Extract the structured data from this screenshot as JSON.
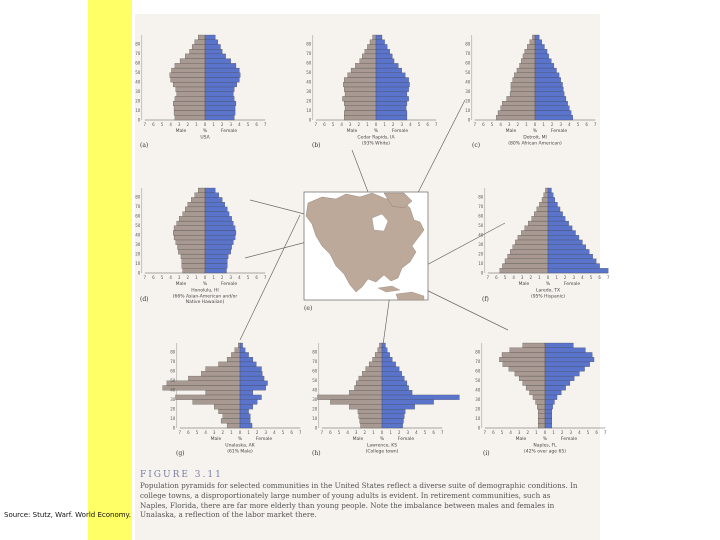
{
  "source_text": "Source: Stutz, Warf. World Economy.",
  "figure": {
    "title": "FIGURE 3.11",
    "caption": "Population pyramids for selected communities in the United States reflect a diverse suite of demographic conditions. In college towns, a disproportionately large number of young adults is evident. In retirement communities, such as Naples, Florida, there are far more elderly than young people. Note the imbalance between males and females in Unalaska, a reflection of the labor market there."
  },
  "colors": {
    "male": "#a89a92",
    "female": "#5a74cc",
    "stripe": "#ffff66",
    "map_land": "#bca99a",
    "map_water": "#ffffff"
  },
  "chart_data": [
    {
      "type": "bar",
      "panel": "a",
      "axis_labels": [
        "Male",
        "%",
        "Female"
      ],
      "caption": [
        "USA"
      ],
      "age_ticks": [
        "0",
        "10",
        "20",
        "30",
        "40",
        "50",
        "60",
        "70",
        "80"
      ],
      "x_ticks": [
        "7",
        "6",
        "5",
        "4",
        "3",
        "2",
        "1",
        "0",
        "1",
        "2",
        "3",
        "4",
        "5",
        "6",
        "7"
      ],
      "series": [
        {
          "name": "Male",
          "values": [
            3.5,
            3.6,
            3.6,
            3.7,
            3.5,
            3.3,
            3.4,
            3.7,
            4.0,
            4.1,
            3.9,
            3.5,
            2.9,
            2.3,
            1.8,
            1.5,
            1.2,
            0.8
          ]
        },
        {
          "name": "Female",
          "values": [
            3.4,
            3.5,
            3.5,
            3.6,
            3.4,
            3.3,
            3.4,
            3.7,
            4.0,
            4.1,
            4.0,
            3.6,
            3.0,
            2.4,
            2.0,
            1.8,
            1.5,
            1.2
          ]
        }
      ]
    },
    {
      "type": "bar",
      "panel": "b",
      "axis_labels": [
        "Male",
        "%",
        "Female"
      ],
      "caption": [
        "Cedar Rapids, IA",
        "(93% White)"
      ],
      "age_ticks": [
        "0",
        "10",
        "20",
        "30",
        "40",
        "50",
        "60",
        "70",
        "80"
      ],
      "x_ticks": [
        "7",
        "6",
        "5",
        "4",
        "3",
        "2",
        "1",
        "0",
        "1",
        "2",
        "3",
        "4",
        "5",
        "6",
        "7"
      ],
      "series": [
        {
          "name": "Male",
          "values": [
            3.7,
            3.7,
            3.6,
            3.7,
            3.9,
            3.6,
            3.7,
            3.8,
            3.7,
            3.3,
            2.9,
            2.4,
            1.9,
            1.6,
            1.3,
            1.0,
            0.7,
            0.4
          ]
        },
        {
          "name": "Female",
          "values": [
            3.6,
            3.6,
            3.5,
            3.6,
            3.8,
            3.6,
            3.8,
            3.9,
            3.8,
            3.4,
            3.0,
            2.6,
            2.1,
            1.9,
            1.6,
            1.3,
            1.0,
            0.7
          ]
        }
      ]
    },
    {
      "type": "bar",
      "panel": "c",
      "axis_labels": [
        "Male",
        "%",
        "Female"
      ],
      "caption": [
        "Detroit, MI",
        "(80% African American)"
      ],
      "age_ticks": [
        "0",
        "10",
        "20",
        "30",
        "40",
        "50",
        "60",
        "70",
        "80"
      ],
      "x_ticks": [
        "7",
        "6",
        "5",
        "4",
        "3",
        "2",
        "1",
        "0",
        "1",
        "2",
        "3",
        "4",
        "5",
        "6",
        "7"
      ],
      "series": [
        {
          "name": "Male",
          "values": [
            4.5,
            4.3,
            4.0,
            3.8,
            3.3,
            2.9,
            2.8,
            2.8,
            2.6,
            2.4,
            2.1,
            1.8,
            1.6,
            1.4,
            1.2,
            0.9,
            0.6,
            0.3
          ]
        },
        {
          "name": "Female",
          "values": [
            4.4,
            4.2,
            4.0,
            3.8,
            3.6,
            3.4,
            3.3,
            3.2,
            3.0,
            2.8,
            2.5,
            2.2,
            1.9,
            1.6,
            1.4,
            1.1,
            0.8,
            0.5
          ]
        }
      ]
    },
    {
      "type": "bar",
      "panel": "d",
      "axis_labels": [
        "Male",
        "%",
        "Female"
      ],
      "caption": [
        "Honolulu, HI",
        "(66% Asian-American and/or",
        "Native Hawaiian)"
      ],
      "age_ticks": [
        "0",
        "10",
        "20",
        "30",
        "40",
        "50",
        "60",
        "70",
        "80"
      ],
      "x_ticks": [
        "7",
        "6",
        "5",
        "4",
        "3",
        "2",
        "1",
        "0",
        "1",
        "2",
        "3",
        "4",
        "5",
        "6",
        "7"
      ],
      "series": [
        {
          "name": "Male",
          "values": [
            2.6,
            2.7,
            2.7,
            2.8,
            3.1,
            3.2,
            3.4,
            3.6,
            3.7,
            3.6,
            3.3,
            3.0,
            2.6,
            2.3,
            2.0,
            1.6,
            1.2,
            0.8
          ]
        },
        {
          "name": "Female",
          "values": [
            2.5,
            2.6,
            2.6,
            2.7,
            3.0,
            3.1,
            3.3,
            3.5,
            3.6,
            3.5,
            3.3,
            3.1,
            2.8,
            2.6,
            2.3,
            2.0,
            1.6,
            1.2
          ]
        }
      ]
    },
    {
      "type": "bar",
      "panel": "f",
      "axis_labels": [
        "Male",
        "%",
        "Female"
      ],
      "caption": [
        "Laredo, TX",
        "(95% Hispanic)"
      ],
      "age_ticks": [
        "0",
        "10",
        "20",
        "30",
        "40",
        "50",
        "60",
        "70",
        "80"
      ],
      "x_ticks": [
        "7",
        "6",
        "5",
        "4",
        "3",
        "2",
        "1",
        "0",
        "1",
        "2",
        "3",
        "4",
        "5",
        "6",
        "7"
      ],
      "series": [
        {
          "name": "Male",
          "values": [
            5.6,
            5.3,
            5.0,
            4.7,
            4.4,
            4.1,
            3.8,
            3.5,
            3.1,
            2.7,
            2.3,
            1.9,
            1.6,
            1.3,
            1.0,
            0.7,
            0.5,
            0.3
          ]
        },
        {
          "name": "Female",
          "values": [
            7.0,
            6.0,
            5.6,
            5.2,
            4.8,
            4.4,
            4.0,
            3.6,
            3.2,
            2.8,
            2.4,
            2.0,
            1.7,
            1.4,
            1.1,
            0.8,
            0.6,
            0.4
          ]
        }
      ]
    },
    {
      "type": "bar",
      "panel": "g",
      "axis_labels": [
        "Male",
        "%",
        "Female"
      ],
      "caption": [
        "Unalaska, AK",
        "(61% Male)"
      ],
      "age_ticks": [
        "0",
        "10",
        "20",
        "30",
        "40",
        "50",
        "60",
        "70",
        "80"
      ],
      "x_ticks": [
        "7",
        "6",
        "5",
        "4",
        "3",
        "2",
        "1",
        "0",
        "1",
        "2",
        "3",
        "4",
        "5",
        "6",
        "7"
      ],
      "series": [
        {
          "name": "Male",
          "values": [
            1.5,
            2.2,
            2.0,
            2.5,
            3.0,
            5.5,
            7.5,
            4.0,
            9.0,
            8.5,
            6.0,
            4.5,
            4.0,
            2.5,
            1.5,
            1.0,
            0.6,
            0.2
          ]
        },
        {
          "name": "Female",
          "values": [
            1.4,
            1.2,
            1.2,
            1.0,
            1.5,
            2.0,
            2.5,
            1.5,
            3.0,
            3.2,
            2.8,
            2.6,
            2.5,
            1.9,
            1.5,
            1.0,
            0.6,
            0.3
          ]
        }
      ]
    },
    {
      "type": "bar",
      "panel": "h",
      "axis_labels": [
        "Male",
        "%",
        "Female"
      ],
      "caption": [
        "Lawrence, KS",
        "(College town)"
      ],
      "age_ticks": [
        "0",
        "10",
        "20",
        "30",
        "40",
        "50",
        "60",
        "70",
        "80"
      ],
      "x_ticks": [
        "7",
        "6",
        "5",
        "4",
        "3",
        "2",
        "1",
        "0",
        "1",
        "2",
        "3",
        "4",
        "5",
        "6",
        "7"
      ],
      "series": [
        {
          "name": "Male",
          "values": [
            2.5,
            2.6,
            2.7,
            2.8,
            3.8,
            6.0,
            7.5,
            3.8,
            3.2,
            3.0,
            2.7,
            2.3,
            1.9,
            1.5,
            1.1,
            0.8,
            0.5,
            0.3
          ]
        },
        {
          "name": "Female",
          "values": [
            2.4,
            2.5,
            2.6,
            2.7,
            3.8,
            6.0,
            9.0,
            3.5,
            3.1,
            2.9,
            2.6,
            2.3,
            2.0,
            1.6,
            1.2,
            0.9,
            0.6,
            0.4
          ]
        }
      ]
    },
    {
      "type": "bar",
      "panel": "i",
      "axis_labels": [
        "Male",
        "%",
        "Female"
      ],
      "caption": [
        "Naples, FL",
        "(42% over age 65)"
      ],
      "age_ticks": [
        "0",
        "10",
        "20",
        "30",
        "40",
        "50",
        "60",
        "70",
        "80"
      ],
      "x_ticks": [
        "7",
        "6",
        "5",
        "4",
        "3",
        "2",
        "1",
        "0",
        "1",
        "2",
        "3",
        "4",
        "5",
        "6",
        "7"
      ],
      "series": [
        {
          "name": "Male",
          "values": [
            0.8,
            0.8,
            0.8,
            0.8,
            0.9,
            1.1,
            1.4,
            1.8,
            2.2,
            2.6,
            3.0,
            3.5,
            4.2,
            4.9,
            5.3,
            5.0,
            4.1,
            2.6
          ]
        },
        {
          "name": "Female",
          "values": [
            0.8,
            0.8,
            0.8,
            0.8,
            0.9,
            1.1,
            1.4,
            1.9,
            2.4,
            2.9,
            3.4,
            4.0,
            4.6,
            5.2,
            5.7,
            5.5,
            4.7,
            3.3
          ]
        }
      ]
    }
  ],
  "map": {
    "panel": "e"
  }
}
